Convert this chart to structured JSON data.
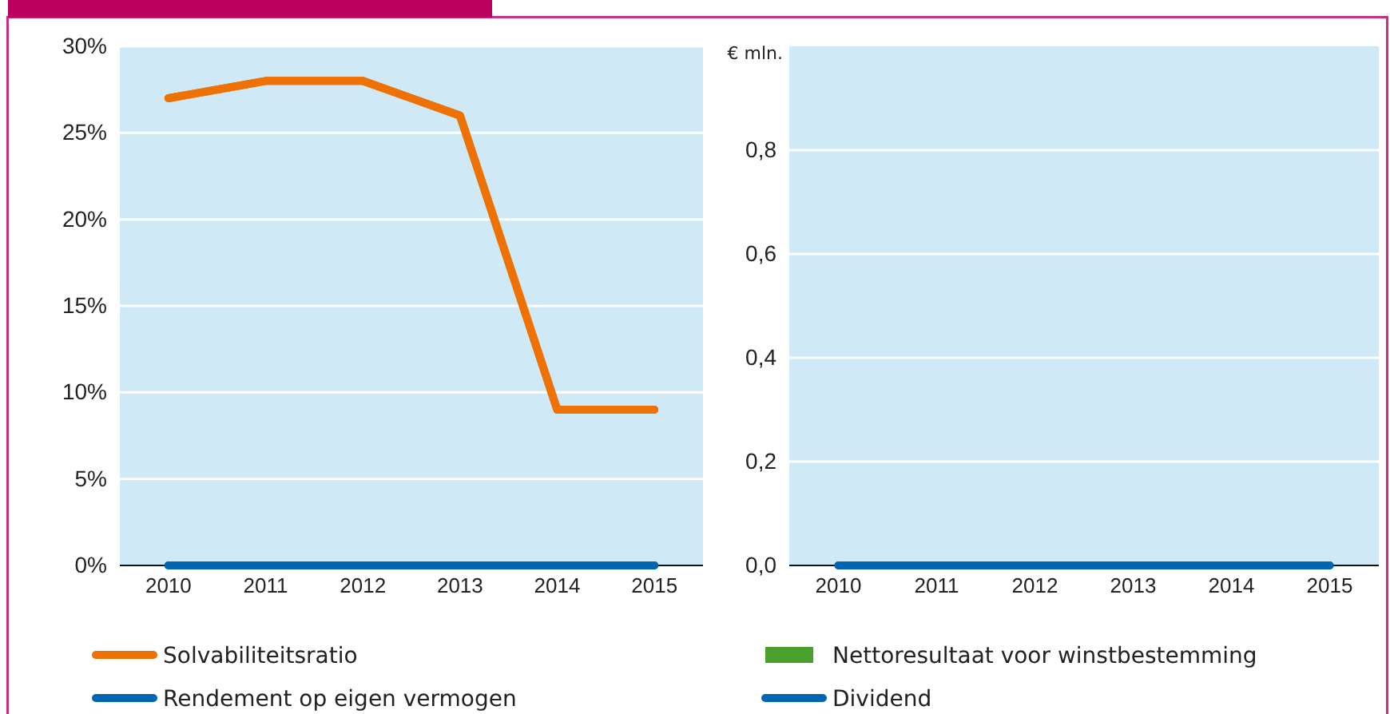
{
  "chart_data": [
    {
      "type": "line",
      "categories": [
        "2010",
        "2011",
        "2012",
        "2013",
        "2014",
        "2015"
      ],
      "series": [
        {
          "name": "Solvabiliteitsratio",
          "color": "#ee7203",
          "values": [
            27,
            28,
            28,
            26,
            9,
            9
          ]
        },
        {
          "name": "Rendement op eigen vermogen",
          "color": "#0066b3",
          "values": [
            0,
            0,
            0,
            0,
            0,
            0
          ]
        }
      ],
      "ylim": [
        0,
        30
      ],
      "yticks": [
        {
          "value": 0,
          "label": "0%"
        },
        {
          "value": 5,
          "label": "5%"
        },
        {
          "value": 10,
          "label": "10%"
        },
        {
          "value": 15,
          "label": "15%"
        },
        {
          "value": 20,
          "label": "20%"
        },
        {
          "value": 25,
          "label": "25%"
        },
        {
          "value": 30,
          "label": "30%"
        }
      ],
      "grid": "y",
      "legend": "bottom"
    },
    {
      "type": "bar",
      "ylabel": "€ mln.",
      "categories": [
        "2010",
        "2011",
        "2012",
        "2013",
        "2014",
        "2015"
      ],
      "series": [
        {
          "name": "Nettoresultaat voor winstbestemming",
          "color": "#4aa02c",
          "type": "bar",
          "values": [
            0,
            0,
            0,
            0,
            0,
            0
          ]
        },
        {
          "name": "Dividend",
          "color": "#0066b3",
          "type": "line",
          "values": [
            0,
            0,
            0,
            0,
            0,
            0
          ]
        }
      ],
      "ylim": [
        0,
        1
      ],
      "yticks": [
        {
          "value": 0,
          "label": "0,0"
        },
        {
          "value": 0.2,
          "label": "0,2"
        },
        {
          "value": 0.4,
          "label": "0,4"
        },
        {
          "value": 0.6,
          "label": "0,6"
        },
        {
          "value": 0.8,
          "label": "0,8"
        }
      ],
      "grid": "y",
      "legend": "bottom"
    }
  ]
}
